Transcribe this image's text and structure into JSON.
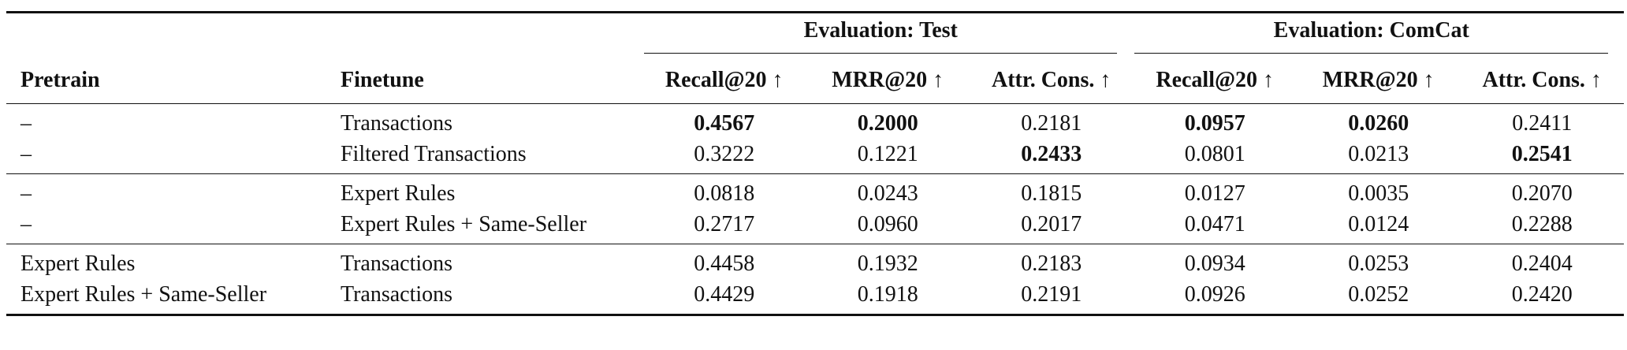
{
  "table": {
    "group_headers": [
      {
        "label": "Evaluation: Test",
        "span": 3
      },
      {
        "label": "Evaluation: ComCat",
        "span": 3
      }
    ],
    "columns": [
      "Pretrain",
      "Finetune",
      "Recall@20 ↑",
      "MRR@20 ↑",
      "Attr. Cons. ↑",
      "Recall@20 ↑",
      "MRR@20 ↑",
      "Attr. Cons. ↑"
    ],
    "groups": [
      [
        {
          "pretrain": "–",
          "finetune": "Transactions",
          "values": [
            "0.4567",
            "0.2000",
            "0.2181",
            "0.0957",
            "0.0260",
            "0.2411"
          ],
          "bold": [
            true,
            true,
            false,
            true,
            true,
            false
          ]
        },
        {
          "pretrain": "–",
          "finetune": "Filtered Transactions",
          "values": [
            "0.3222",
            "0.1221",
            "0.2433",
            "0.0801",
            "0.0213",
            "0.2541"
          ],
          "bold": [
            false,
            false,
            true,
            false,
            false,
            true
          ]
        }
      ],
      [
        {
          "pretrain": "–",
          "finetune": "Expert Rules",
          "values": [
            "0.0818",
            "0.0243",
            "0.1815",
            "0.0127",
            "0.0035",
            "0.2070"
          ],
          "bold": [
            false,
            false,
            false,
            false,
            false,
            false
          ]
        },
        {
          "pretrain": "–",
          "finetune": "Expert Rules + Same-Seller",
          "values": [
            "0.2717",
            "0.0960",
            "0.2017",
            "0.0471",
            "0.0124",
            "0.2288"
          ],
          "bold": [
            false,
            false,
            false,
            false,
            false,
            false
          ]
        }
      ],
      [
        {
          "pretrain": "Expert Rules",
          "finetune": "Transactions",
          "values": [
            "0.4458",
            "0.1932",
            "0.2183",
            "0.0934",
            "0.0253",
            "0.2404"
          ],
          "bold": [
            false,
            false,
            false,
            false,
            false,
            false
          ]
        },
        {
          "pretrain": "Expert Rules + Same-Seller",
          "finetune": "Transactions",
          "values": [
            "0.4429",
            "0.1918",
            "0.2191",
            "0.0926",
            "0.0252",
            "0.2420"
          ],
          "bold": [
            false,
            false,
            false,
            false,
            false,
            false
          ]
        }
      ]
    ]
  }
}
